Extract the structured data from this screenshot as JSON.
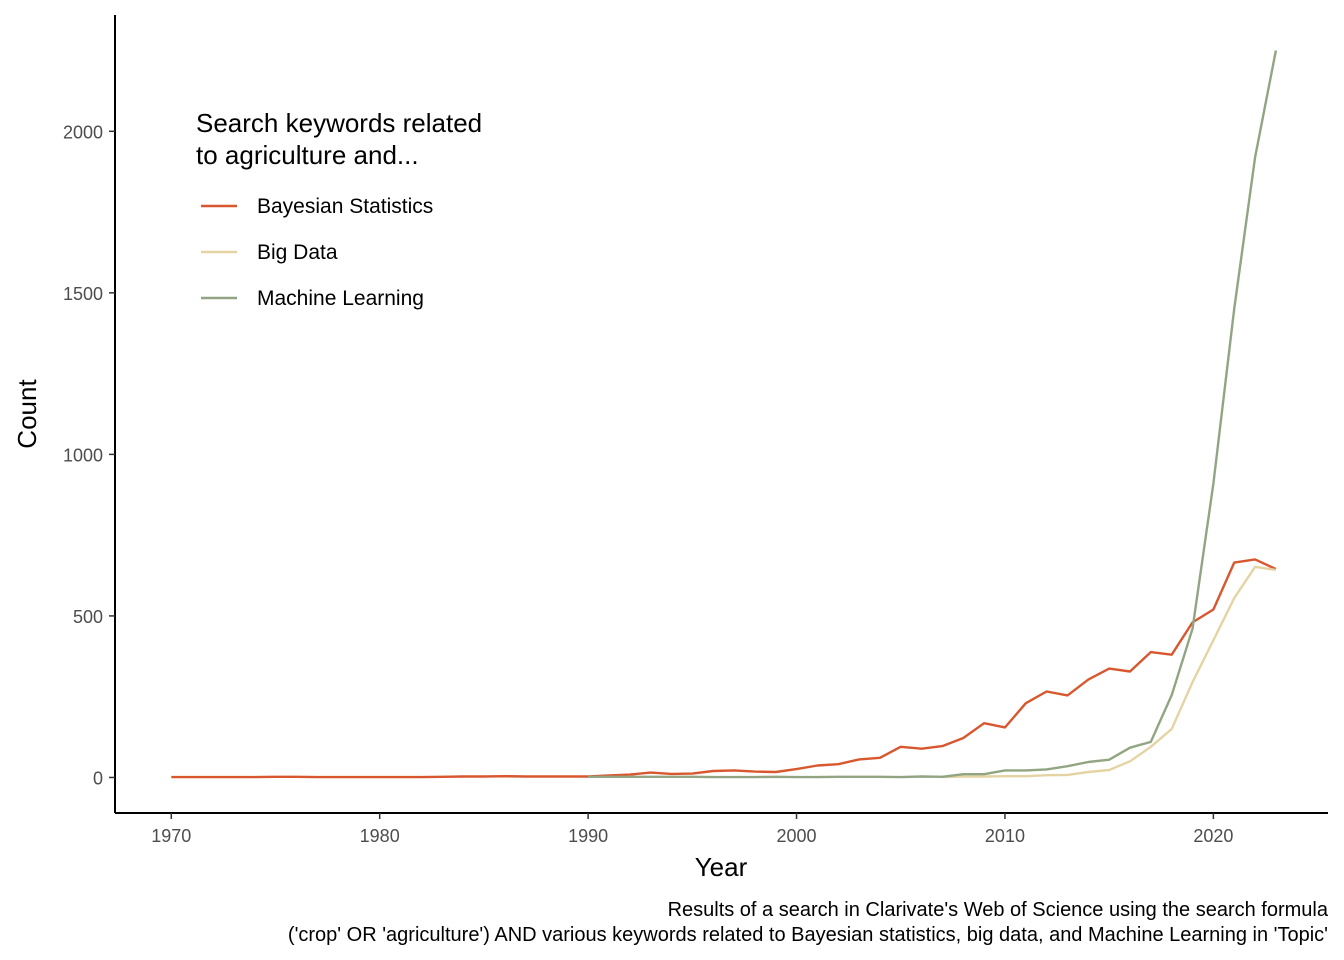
{
  "chart_data": {
    "type": "line",
    "title": "",
    "xlabel": "Year",
    "ylabel": "Count",
    "xlim": [
      1967.3,
      2025.5
    ],
    "ylim": [
      -110,
      2360
    ],
    "xticks": [
      1970,
      1980,
      1990,
      2000,
      2010,
      2020
    ],
    "yticks": [
      0,
      500,
      1000,
      1500,
      2000
    ],
    "grid": false,
    "legend": {
      "title_lines": [
        "Search keywords related",
        "to agriculture and..."
      ],
      "placement": "top-left"
    },
    "caption_lines": [
      "Results of a search in Clarivate's Web of Science using the search formula",
      "('crop' OR 'agriculture') AND various keywords related to Bayesian statistics, big data, and Machine Learning in 'Topic'"
    ],
    "series": [
      {
        "name": "Bayesian Statistics",
        "color": "#D9572F",
        "x": [
          1970,
          1971,
          1972,
          1973,
          1974,
          1975,
          1976,
          1977,
          1978,
          1979,
          1980,
          1981,
          1982,
          1983,
          1984,
          1985,
          1986,
          1987,
          1988,
          1989,
          1990,
          1991,
          1992,
          1993,
          1994,
          1995,
          1996,
          1997,
          1998,
          1999,
          2000,
          2001,
          2002,
          2003,
          2004,
          2005,
          2006,
          2007,
          2008,
          2009,
          2010,
          2011,
          2012,
          2013,
          2014,
          2015,
          2016,
          2017,
          2018,
          2019,
          2020,
          2021,
          2022,
          2023
        ],
        "y": [
          1,
          1,
          1,
          1,
          1,
          2,
          2,
          1,
          1,
          1,
          1,
          1,
          1,
          2,
          3,
          3,
          4,
          3,
          3,
          3,
          3,
          6,
          9,
          15,
          11,
          12,
          20,
          22,
          18,
          17,
          26,
          37,
          41,
          56,
          61,
          95,
          89,
          97,
          122,
          168,
          155,
          230,
          266,
          254,
          303,
          337,
          328,
          388,
          380,
          480,
          520,
          665,
          675,
          645
        ]
      },
      {
        "name": "Big Data",
        "color": "#E5D4A3",
        "x": [
          2007,
          2008,
          2009,
          2010,
          2011,
          2012,
          2013,
          2014,
          2015,
          2016,
          2017,
          2018,
          2019,
          2020,
          2021,
          2022,
          2023
        ],
        "y": [
          1,
          3,
          3,
          4,
          4,
          7,
          8,
          17,
          23,
          50,
          95,
          150,
          295,
          425,
          555,
          652,
          642
        ]
      },
      {
        "name": "Machine Learning",
        "color": "#92A582",
        "x": [
          1990,
          1991,
          1992,
          1993,
          1994,
          1995,
          1996,
          1997,
          1998,
          1999,
          2000,
          2001,
          2002,
          2003,
          2004,
          2005,
          2006,
          2007,
          2008,
          2009,
          2010,
          2011,
          2012,
          2013,
          2014,
          2015,
          2016,
          2017,
          2018,
          2019,
          2020,
          2021,
          2022,
          2023
        ],
        "y": [
          2,
          2,
          2,
          2,
          2,
          2,
          1,
          1,
          1,
          2,
          1,
          1,
          2,
          2,
          2,
          1,
          3,
          2,
          10,
          10,
          22,
          22,
          25,
          35,
          48,
          55,
          92,
          110,
          255,
          460,
          910,
          1450,
          1920,
          2250
        ]
      }
    ]
  }
}
